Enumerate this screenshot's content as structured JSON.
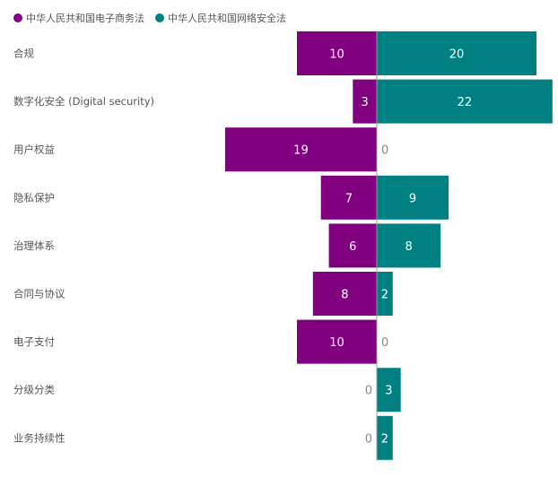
{
  "colors": {
    "series_a": "#800080",
    "series_b": "#008080",
    "axis": "#999999"
  },
  "chart_data": {
    "type": "bar",
    "orientation": "horizontal",
    "layout": "diverging",
    "legend_position": "top-left",
    "categories": [
      "合规",
      "数字化安全 (Digital security)",
      "用户权益",
      "隐私保护",
      "治理体系",
      "合同与协议",
      "电子支付",
      "分级分类",
      "业务持续性"
    ],
    "series": [
      {
        "name": "中华人民共和国电子商务法",
        "values": [
          10,
          3,
          19,
          7,
          6,
          8,
          10,
          0,
          0
        ]
      },
      {
        "name": "中华人民共和国网络安全法",
        "values": [
          20,
          22,
          0,
          9,
          8,
          2,
          0,
          3,
          2
        ]
      }
    ],
    "xlim": [
      -19,
      22
    ],
    "grid": false
  }
}
